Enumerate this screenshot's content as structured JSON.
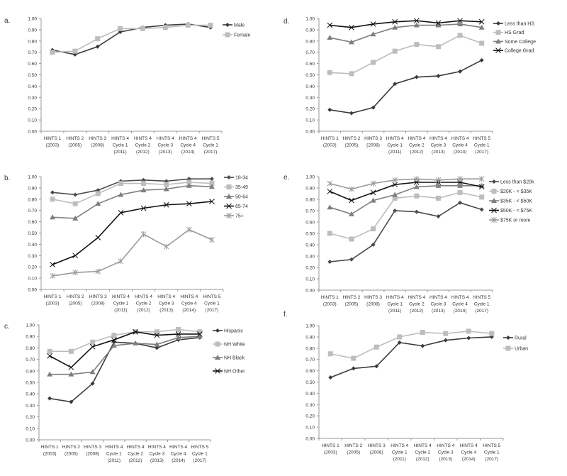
{
  "chart_data": [
    {
      "panel_label": "a.",
      "type": "line",
      "ylim": [
        0,
        1
      ],
      "grid": false,
      "legend_placement": "right",
      "series": [
        {
          "name": "Male",
          "color": "#3a3a3a",
          "marker": "diamond",
          "values": [
            0.72,
            0.68,
            0.75,
            0.88,
            0.92,
            0.94,
            0.95,
            0.92
          ]
        },
        {
          "name": "Female",
          "color": "#bdbdbd",
          "marker": "square",
          "values": [
            0.7,
            0.71,
            0.82,
            0.91,
            0.91,
            0.92,
            0.94,
            0.94
          ]
        }
      ]
    },
    {
      "panel_label": "b.",
      "type": "line",
      "ylim": [
        0,
        1
      ],
      "grid": false,
      "legend_placement": "right",
      "series": [
        {
          "name": "18-34",
          "color": "#4a4a4a",
          "marker": "diamond",
          "values": [
            0.86,
            0.84,
            0.88,
            0.96,
            0.97,
            0.96,
            0.98,
            0.98
          ]
        },
        {
          "name": "35-49",
          "color": "#bdbdbd",
          "marker": "square",
          "values": [
            0.8,
            0.76,
            0.85,
            0.94,
            0.94,
            0.93,
            0.95,
            0.94
          ]
        },
        {
          "name": "50-64",
          "color": "#7f7f7f",
          "marker": "triangle",
          "values": [
            0.64,
            0.63,
            0.76,
            0.84,
            0.88,
            0.89,
            0.92,
            0.91
          ]
        },
        {
          "name": "65-74",
          "color": "#111111",
          "marker": "x",
          "values": [
            0.22,
            0.3,
            0.46,
            0.68,
            0.72,
            0.75,
            0.76,
            0.78
          ]
        },
        {
          "name": "75+",
          "color": "#9a9a9a",
          "marker": "star",
          "values": [
            0.12,
            0.15,
            0.16,
            0.25,
            0.49,
            0.38,
            0.53,
            0.44
          ]
        }
      ]
    },
    {
      "panel_label": "c.",
      "type": "line",
      "ylim": [
        0,
        1
      ],
      "grid": false,
      "legend_placement": "right",
      "series": [
        {
          "name": "Hispanic",
          "color": "#3a3a3a",
          "marker": "diamond",
          "values": [
            0.36,
            0.33,
            0.49,
            0.85,
            0.84,
            0.8,
            0.87,
            0.89
          ]
        },
        {
          "name": "NH White",
          "color": "#bdbdbd",
          "marker": "square",
          "values": [
            0.77,
            0.77,
            0.85,
            0.91,
            0.94,
            0.94,
            0.96,
            0.94
          ]
        },
        {
          "name": "NH Black",
          "color": "#7f7f7f",
          "marker": "triangle",
          "values": [
            0.57,
            0.57,
            0.59,
            0.82,
            0.84,
            0.83,
            0.89,
            0.9
          ]
        },
        {
          "name": "NH Other",
          "color": "#111111",
          "marker": "x",
          "values": [
            0.73,
            0.63,
            0.81,
            0.87,
            0.94,
            0.91,
            0.92,
            0.92
          ]
        }
      ]
    },
    {
      "panel_label": "d.",
      "type": "line",
      "ylim": [
        0,
        1
      ],
      "grid": false,
      "legend_placement": "right",
      "series": [
        {
          "name": "Less than HS",
          "color": "#3a3a3a",
          "marker": "diamond",
          "values": [
            0.19,
            0.16,
            0.21,
            0.42,
            0.48,
            0.49,
            0.53,
            0.63
          ]
        },
        {
          "name": "HS Grad",
          "color": "#bdbdbd",
          "marker": "square",
          "values": [
            0.52,
            0.51,
            0.61,
            0.71,
            0.77,
            0.75,
            0.85,
            0.78
          ]
        },
        {
          "name": "Some College",
          "color": "#7f7f7f",
          "marker": "triangle",
          "values": [
            0.83,
            0.79,
            0.86,
            0.92,
            0.94,
            0.94,
            0.95,
            0.92
          ]
        },
        {
          "name": "College Grad",
          "color": "#111111",
          "marker": "x",
          "values": [
            0.94,
            0.92,
            0.95,
            0.97,
            0.98,
            0.96,
            0.98,
            0.97
          ]
        }
      ]
    },
    {
      "panel_label": "e.",
      "type": "line",
      "ylim": [
        0,
        1
      ],
      "grid": false,
      "legend_placement": "right",
      "series": [
        {
          "name": "Less than $20k",
          "color": "#4a4a4a",
          "marker": "diamond",
          "values": [
            0.25,
            0.27,
            0.4,
            0.7,
            0.69,
            0.65,
            0.77,
            0.71
          ]
        },
        {
          "name": "$20K - < $35K",
          "color": "#bdbdbd",
          "marker": "square",
          "values": [
            0.5,
            0.45,
            0.54,
            0.81,
            0.83,
            0.81,
            0.86,
            0.82
          ]
        },
        {
          "name": "$35K - < $50K",
          "color": "#7f7f7f",
          "marker": "triangle",
          "values": [
            0.73,
            0.67,
            0.79,
            0.84,
            0.91,
            0.92,
            0.92,
            0.92
          ]
        },
        {
          "name": "$50K - < $75K",
          "color": "#111111",
          "marker": "x",
          "values": [
            0.87,
            0.79,
            0.86,
            0.93,
            0.95,
            0.95,
            0.95,
            0.91
          ]
        },
        {
          "name": "$75K or more",
          "color": "#9a9a9a",
          "marker": "star",
          "values": [
            0.94,
            0.89,
            0.94,
            0.97,
            0.98,
            0.97,
            0.98,
            0.98
          ]
        }
      ]
    },
    {
      "panel_label": "f.",
      "type": "line",
      "ylim": [
        0,
        1
      ],
      "grid": false,
      "legend_placement": "right",
      "series": [
        {
          "name": "Rural",
          "color": "#3a3a3a",
          "marker": "diamond",
          "values": [
            0.54,
            0.62,
            0.64,
            0.85,
            0.82,
            0.87,
            0.89,
            0.9
          ]
        },
        {
          "name": "Urban",
          "color": "#bdbdbd",
          "marker": "square",
          "values": [
            0.75,
            0.71,
            0.81,
            0.9,
            0.94,
            0.93,
            0.95,
            0.93
          ]
        }
      ]
    }
  ],
  "categories": [
    [
      "HINTS 1",
      "(2003)"
    ],
    [
      "HINTS 2",
      "(2005)"
    ],
    [
      "HINTS 3",
      "(2008)"
    ],
    [
      "HINTS 4",
      "Cycle 1",
      "(2011)"
    ],
    [
      "HINTS 4",
      "Cycle 2",
      "(2012)"
    ],
    [
      "HINTS 4",
      "Cycle 3",
      "(2013)"
    ],
    [
      "HINTS 4",
      "Cycle 4",
      "(2014)"
    ],
    [
      "HINTS 5",
      "Cycle 1",
      "(2017)"
    ]
  ],
  "y_ticks": [
    "0.00",
    "0.10",
    "0.20",
    "0.30",
    "0.40",
    "0.50",
    "0.60",
    "0.70",
    "0.80",
    "0.90",
    "1.00"
  ]
}
